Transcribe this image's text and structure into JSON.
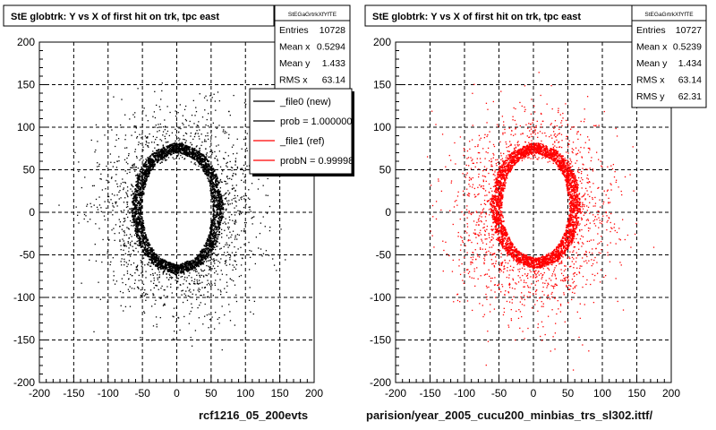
{
  "bottom_left_note": "",
  "captions": {
    "left": "rcf1216_05_200evts",
    "right": "parision/year_2005_cucu200_minbias_trs_sl302.ittf/"
  },
  "chart_data": [
    {
      "type": "scatter",
      "title": "StE globtrk: Y vs X of first hit on trk, tpc east",
      "xlim": [
        -200,
        200
      ],
      "ylim": [
        -200,
        200
      ],
      "xticks": [
        -200,
        -150,
        -100,
        -50,
        0,
        50,
        100,
        150,
        200
      ],
      "yticks": [
        -200,
        -150,
        -100,
        -50,
        0,
        50,
        100,
        150,
        200
      ],
      "grid": true,
      "marker_color": "#000000",
      "ring": {
        "inner_x": [
          -45,
          45
        ],
        "inner_y": [
          -52,
          62
        ],
        "outer_x": [
          -58,
          58
        ],
        "outer_y": [
          -62,
          72
        ]
      },
      "stats": {
        "name": "StEGaGrtrkXfYfTE",
        "rows": [
          {
            "label": "Entries",
            "value": "10728"
          },
          {
            "label": "Mean x",
            "value": "0.5294"
          },
          {
            "label": "Mean y",
            "value": "1.433"
          },
          {
            "label": "RMS x",
            "value": "63.14"
          }
        ]
      },
      "legend": {
        "placement": "top-right",
        "entries": [
          {
            "label": "_file0 (new)",
            "color": "#000000"
          },
          {
            "label": "prob = 1.000000",
            "color": "#000000"
          },
          {
            "label": "_file1 (ref)",
            "color": "#ff0000"
          },
          {
            "label": "probN = 0.99998",
            "color": "#ff0000"
          }
        ]
      }
    },
    {
      "type": "scatter",
      "title": "StE globtrk: Y vs X of first hit on trk, tpc east",
      "xlim": [
        -200,
        200
      ],
      "ylim": [
        -200,
        200
      ],
      "xticks": [
        -200,
        -150,
        -100,
        -50,
        0,
        50,
        100,
        150,
        200
      ],
      "yticks": [
        -200,
        -150,
        -100,
        -50,
        0,
        50,
        100,
        150,
        200
      ],
      "grid": true,
      "marker_color": "#ff0000",
      "ring": {
        "inner_x": [
          -40,
          45
        ],
        "inner_y": [
          -45,
          62
        ],
        "outer_x": [
          -55,
          58
        ],
        "outer_y": [
          -58,
          70
        ]
      },
      "stats": {
        "name": "StEGaGrtrkXfYfTE",
        "rows": [
          {
            "label": "Entries",
            "value": "10727"
          },
          {
            "label": "Mean x",
            "value": "0.5239"
          },
          {
            "label": "Mean y",
            "value": "1.434"
          },
          {
            "label": "RMS x",
            "value": "63.14"
          },
          {
            "label": "RMS y",
            "value": "62.31"
          }
        ]
      }
    }
  ]
}
